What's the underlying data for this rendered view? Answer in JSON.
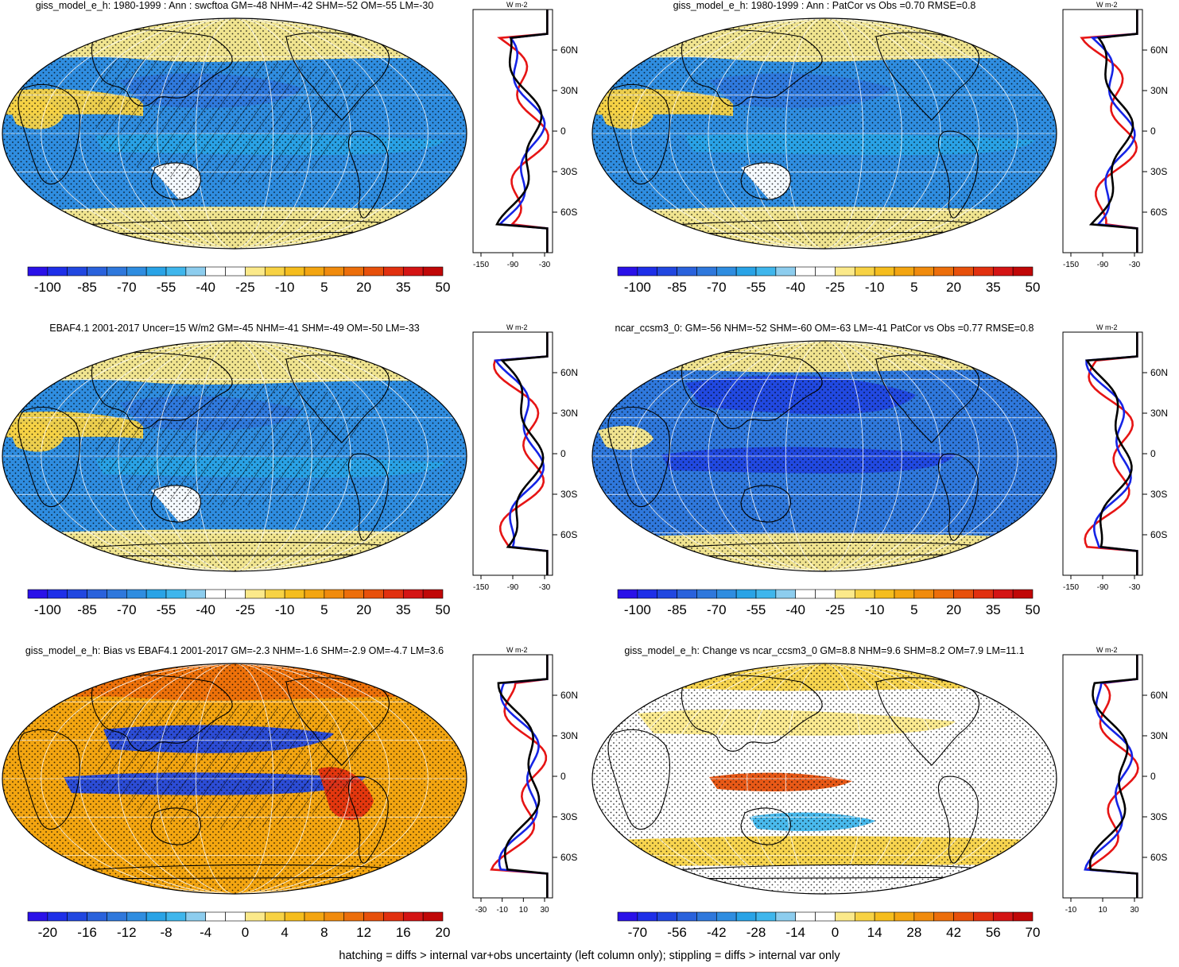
{
  "footer": "hatching = diffs > internal var+obs uncertainty (left column only); stippling = diffs > internal var only",
  "colors": {
    "scale_21": [
      "#2a11e8",
      "#1e2fe8",
      "#2147e0",
      "#2a62dc",
      "#2f78dc",
      "#2f8de0",
      "#29a3e6",
      "#3fb6ec",
      "#8dcdee",
      "#ffffff",
      "#ffffff",
      "#fbe98a",
      "#f7d244",
      "#f5bd1d",
      "#f3a511",
      "#f08b0d",
      "#ec6e0b",
      "#e7500b",
      "#e1300f",
      "#d41414",
      "#c00707"
    ],
    "land": "#000000",
    "zonal_model": "#000000",
    "zonal_obs": "#1524e6",
    "zonal_ref": "#e61414"
  },
  "panels": [
    {
      "id": "model",
      "title": "giss_model_e_h: 1980-1999 : Ann : swcftoa GM=-48 NHM=-42 SHM=-52 OM=-55 LM=-30",
      "colorbar_labels": [
        "-100",
        "-85",
        "-70",
        "-55",
        "-40",
        "-25",
        "-10",
        "5",
        "20",
        "35",
        "50"
      ],
      "colorbar_label_every": 2,
      "zonal_axis": {
        "unit": "W m-2",
        "x_ticks": [
          "-150",
          "-90",
          "-30"
        ],
        "y_ticks": [
          "60N",
          "30N",
          "0",
          "30S",
          "60S"
        ]
      },
      "map_bias": "mean",
      "hatching": true
    },
    {
      "id": "model-corr",
      "title": "giss_model_e_h: 1980-1999 : Ann : PatCor vs Obs =0.70 RMSE=0.8",
      "colorbar_labels": [
        "-100",
        "-85",
        "-70",
        "-55",
        "-40",
        "-25",
        "-10",
        "5",
        "20",
        "35",
        "50"
      ],
      "colorbar_label_every": 2,
      "zonal_axis": {
        "unit": "W m-2",
        "x_ticks": [
          "-150",
          "-90",
          "-30"
        ],
        "y_ticks": [
          "60N",
          "30N",
          "0",
          "30S",
          "60S"
        ]
      },
      "map_bias": "mean",
      "hatching": false
    },
    {
      "id": "obs",
      "title": "EBAF4.1 2001-2017 Uncer=15 W/m2 GM=-45 NHM=-41 SHM=-49 OM=-50 LM=-33",
      "colorbar_labels": [
        "-100",
        "-85",
        "-70",
        "-55",
        "-40",
        "-25",
        "-10",
        "5",
        "20",
        "35",
        "50"
      ],
      "colorbar_label_every": 2,
      "zonal_axis": {
        "unit": "W m-2",
        "x_ticks": [
          "-150",
          "-90",
          "-30"
        ],
        "y_ticks": [
          "60N",
          "30N",
          "0",
          "30S",
          "60S"
        ]
      },
      "map_bias": "mean",
      "hatching": true
    },
    {
      "id": "ref",
      "title": "ncar_ccsm3_0: GM=-56 NHM=-52 SHM=-60 OM=-63 LM=-41 PatCor vs Obs =0.77 RMSE=0.8",
      "colorbar_labels": [
        "-100",
        "-85",
        "-70",
        "-55",
        "-40",
        "-25",
        "-10",
        "5",
        "20",
        "35",
        "50"
      ],
      "colorbar_label_every": 2,
      "zonal_axis": {
        "unit": "W m-2",
        "x_ticks": [
          "-150",
          "-90",
          "-30"
        ],
        "y_ticks": [
          "60N",
          "30N",
          "0",
          "30S",
          "60S"
        ]
      },
      "map_bias": "strong",
      "hatching": false
    },
    {
      "id": "bias",
      "title": "giss_model_e_h: Bias vs EBAF4.1 2001-2017 GM=-2.3 NHM=-1.6 SHM=-2.9 OM=-4.7 LM=3.6",
      "colorbar_labels": [
        "-20",
        "-16",
        "-12",
        "-8",
        "-4",
        "0",
        "4",
        "8",
        "12",
        "16",
        "20"
      ],
      "colorbar_label_every": 2,
      "zonal_axis": {
        "unit": "W m-2",
        "x_ticks": [
          "-30",
          "-10",
          "10",
          "30"
        ],
        "y_ticks": [
          "60N",
          "30N",
          "0",
          "30S",
          "60S"
        ]
      },
      "map_bias": "diff",
      "hatching": true
    },
    {
      "id": "change",
      "title": "giss_model_e_h: Change vs ncar_ccsm3_0 GM=8.8 NHM=9.6 SHM=8.2 OM=7.9 LM=11.1",
      "colorbar_labels": [
        "-70",
        "-56",
        "-42",
        "-28",
        "-14",
        "0",
        "14",
        "28",
        "42",
        "56",
        "70"
      ],
      "colorbar_label_every": 2,
      "zonal_axis": {
        "unit": "W m-2",
        "x_ticks": [
          "-10",
          "10",
          "30"
        ],
        "y_ticks": [
          "60N",
          "30N",
          "0",
          "30S",
          "60S"
        ]
      },
      "map_bias": "change",
      "hatching": false
    }
  ]
}
